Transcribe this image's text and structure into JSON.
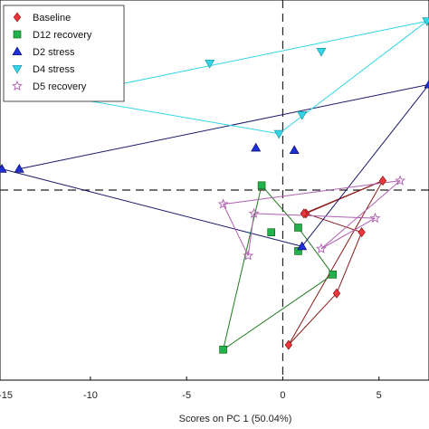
{
  "chart_data": {
    "type": "scatter",
    "xlabel": "Scores on PC 1 (50.04%)",
    "ylabel": "",
    "xlim": [
      -14.7,
      7.6
    ],
    "ylim": [
      -4.05,
      4.05
    ],
    "xticks": [
      -15,
      -10,
      -5,
      0,
      5
    ],
    "xtick_labels": [
      "-15",
      "-10",
      "-5",
      "0",
      "5"
    ],
    "reference_lines": {
      "x": 0,
      "y": 0
    },
    "legend_position": "top-left",
    "series": [
      {
        "name": "Baseline",
        "marker": "diamond",
        "color": "#e8383d",
        "line_color": "#8b1a1a",
        "points": [
          [
            5.2,
            0.2
          ],
          [
            1.2,
            -0.5
          ],
          [
            4.1,
            -0.9
          ],
          [
            2.8,
            -2.2
          ],
          [
            0.3,
            -3.3
          ],
          [
            1.1,
            -0.5
          ]
        ],
        "lines": [
          [
            0,
            1
          ],
          [
            1,
            2
          ],
          [
            2,
            3
          ],
          [
            3,
            4
          ],
          [
            4,
            0
          ],
          [
            0,
            5
          ]
        ]
      },
      {
        "name": "D12 recovery",
        "marker": "square",
        "color": "#22b14c",
        "line_color": "#1e7a1e",
        "points": [
          [
            -1.1,
            0.1
          ],
          [
            0.8,
            -0.8
          ],
          [
            -3.1,
            -3.4
          ],
          [
            2.6,
            -1.8
          ],
          [
            -0.6,
            -0.9
          ],
          [
            0.8,
            -1.3
          ]
        ],
        "lines": [
          [
            0,
            1
          ],
          [
            1,
            3
          ],
          [
            3,
            2
          ],
          [
            2,
            0
          ]
        ]
      },
      {
        "name": "D2 stress",
        "marker": "triangle-up",
        "color": "#1f2fd6",
        "line_color": "#1a1a6b",
        "points": [
          [
            -14.6,
            0.45
          ],
          [
            -13.7,
            0.45
          ],
          [
            -1.4,
            0.9
          ],
          [
            0.6,
            0.85
          ],
          [
            1.0,
            -1.2
          ],
          [
            7.6,
            2.25
          ]
        ],
        "lines": [
          [
            0,
            4
          ],
          [
            1,
            5
          ],
          [
            4,
            5
          ]
        ]
      },
      {
        "name": "D4 stress",
        "marker": "triangle-down",
        "color": "#33d6e8",
        "line_color": "#33d6e8",
        "points": [
          [
            -11.5,
            2.0
          ],
          [
            -3.8,
            2.7
          ],
          [
            -0.2,
            1.2
          ],
          [
            1.0,
            1.6
          ],
          [
            2.0,
            2.95
          ],
          [
            7.5,
            3.6
          ]
        ],
        "lines": [
          [
            0,
            5
          ],
          [
            5,
            2
          ],
          [
            2,
            0
          ]
        ]
      },
      {
        "name": "D5 recovery",
        "marker": "star",
        "color": "#b05fb0",
        "line_color": "#b05fb0",
        "points": [
          [
            6.1,
            0.2
          ],
          [
            -3.1,
            -0.3
          ],
          [
            -1.5,
            -0.5
          ],
          [
            4.8,
            -0.6
          ],
          [
            2.0,
            -1.25
          ],
          [
            -1.8,
            -1.4
          ]
        ],
        "lines": [
          [
            0,
            1
          ],
          [
            1,
            5
          ],
          [
            5,
            2
          ],
          [
            2,
            3
          ],
          [
            3,
            4
          ],
          [
            4,
            0
          ]
        ]
      }
    ]
  }
}
